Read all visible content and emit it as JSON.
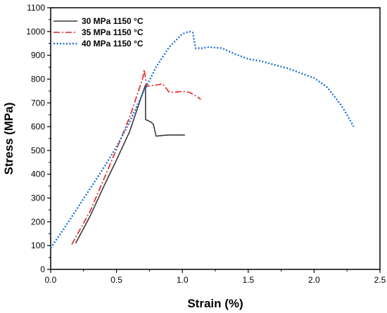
{
  "chart_data": {
    "type": "line",
    "xlabel": "Strain (%)",
    "ylabel": "Stress (MPa)",
    "xlim": [
      0.0,
      2.5
    ],
    "ylim": [
      0,
      1100
    ],
    "x_ticks": [
      "0.0",
      "0.5",
      "1.0",
      "1.5",
      "2.0",
      "2.5"
    ],
    "y_ticks": [
      "0",
      "100",
      "200",
      "300",
      "400",
      "500",
      "600",
      "700",
      "800",
      "900",
      "1000",
      "1100"
    ],
    "grid": false,
    "legend_position": "top-left",
    "series": [
      {
        "name": "30 MPa 1150 °C",
        "color": "#3a3a3a",
        "style": "solid",
        "x": [
          0.19,
          0.3,
          0.4,
          0.5,
          0.6,
          0.7,
          0.72,
          0.72,
          0.76,
          0.78,
          0.8,
          0.85,
          0.9,
          0.95,
          1.0,
          1.02
        ],
        "y": [
          110,
          225,
          345,
          460,
          580,
          745,
          775,
          630,
          620,
          610,
          560,
          563,
          565,
          565,
          565,
          565
        ]
      },
      {
        "name": "35 MPa 1150 °C",
        "color": "#e02020",
        "style": "dashdot",
        "x": [
          0.16,
          0.3,
          0.4,
          0.5,
          0.6,
          0.7,
          0.71,
          0.73,
          0.8,
          0.85,
          0.9,
          0.95,
          1.0,
          1.05,
          1.1,
          1.14
        ],
        "y": [
          105,
          245,
          375,
          505,
          640,
          805,
          840,
          770,
          775,
          780,
          745,
          745,
          748,
          745,
          730,
          715
        ]
      },
      {
        "name": "40 MPa 1150 °C",
        "color": "#1c70d0",
        "style": "dotted",
        "x": [
          0.0,
          0.1,
          0.2,
          0.3,
          0.4,
          0.5,
          0.6,
          0.7,
          0.8,
          0.9,
          1.0,
          1.05,
          1.08,
          1.1,
          1.15,
          1.2,
          1.3,
          1.4,
          1.5,
          1.6,
          1.7,
          1.8,
          1.9,
          2.0,
          2.1,
          2.2,
          2.25,
          2.3
        ],
        "y": [
          90,
          170,
          255,
          340,
          425,
          515,
          620,
          740,
          850,
          935,
          990,
          1000,
          995,
          930,
          930,
          935,
          930,
          905,
          885,
          875,
          860,
          845,
          825,
          805,
          765,
          695,
          650,
          600
        ]
      }
    ]
  }
}
